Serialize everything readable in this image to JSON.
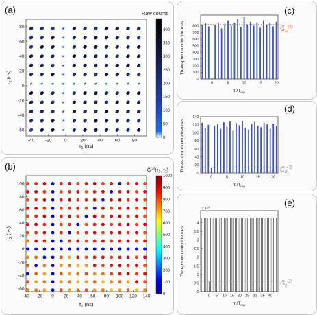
{
  "chart_data": [
    {
      "panel": "(a)",
      "type": "heatmap",
      "xlabel": "τ",
      "xlabel_sub": "1",
      "xlabel_unit": " (ns)",
      "ylabel": "τ",
      "ylabel_sub": "2",
      "ylabel_unit": " (ns)",
      "xticks": [
        -40,
        -20,
        0,
        20,
        40,
        60,
        80
      ],
      "yticks": [
        -60,
        -40,
        -20,
        0,
        20,
        40,
        60,
        80
      ],
      "xlim": [
        -46,
        94
      ],
      "ylim": [
        -68,
        90
      ],
      "colorbar_label": "Raw counts",
      "colorbar_ticks": [
        0,
        50,
        100,
        150,
        200,
        250,
        300,
        350,
        400
      ],
      "colorbar_range": [
        0,
        440
      ],
      "spot_spacing_ns": 12.5,
      "spot_grid_x": [
        -40,
        -27.5,
        -15,
        -2.5,
        10,
        22.5,
        35,
        47.5,
        60,
        72.5,
        85
      ],
      "spot_grid_y": [
        -60,
        -47.5,
        -35,
        -22.5,
        -10,
        2.5,
        15,
        27.5,
        40,
        52.5,
        65,
        77.5
      ]
    },
    {
      "panel": "(b)",
      "type": "heatmap",
      "xlabel": "τ",
      "xlabel_sub": "1",
      "xlabel_unit": " (ns)",
      "ylabel": "τ",
      "ylabel_sub": "2",
      "ylabel_unit": " (ns)",
      "xticks": [
        -40,
        -20,
        0,
        20,
        40,
        60,
        80,
        100,
        120,
        140
      ],
      "yticks": [
        -60,
        -40,
        -20,
        0,
        20,
        40,
        60,
        80,
        100
      ],
      "xlim": [
        -40,
        140
      ],
      "ylim": [
        -65,
        112
      ],
      "colorbar_label_main": "G̃",
      "colorbar_label_sup": "(3)",
      "colorbar_label_args": "(τ",
      "colorbar_label_args_sub": "1",
      "colorbar_label_args_mid": ", τ",
      "colorbar_label_args_sub2": "2",
      "colorbar_label_args_end": ")",
      "colorbar_ticks": [
        0,
        100,
        200,
        300,
        400,
        500,
        600,
        700,
        800,
        900,
        1000
      ],
      "colorbar_range": [
        0,
        1000
      ],
      "spot_spacing_ns": 12.5,
      "typical_value": 850,
      "axis_value": 120
    },
    {
      "panel": "(c)",
      "type": "bar",
      "xlabel": "τ /T",
      "xlabel_sub": "rep",
      "ylabel": "Three-photon coincidences",
      "xticks": [
        0,
        5,
        10,
        15,
        20
      ],
      "yticks": [
        0,
        100,
        200,
        300,
        400,
        500,
        600,
        700,
        800
      ],
      "xlim": [
        -3.5,
        20.5
      ],
      "ylim": [
        0,
        960
      ],
      "x": [
        -3,
        -2,
        -1,
        0,
        1,
        2,
        3,
        4,
        5,
        6,
        7,
        8,
        9,
        10,
        11,
        12,
        13,
        14,
        15,
        16,
        17,
        18,
        19,
        20
      ],
      "values": [
        810,
        840,
        790,
        20,
        805,
        850,
        760,
        830,
        880,
        800,
        840,
        900,
        780,
        930,
        820,
        860,
        800,
        850,
        770,
        880,
        810,
        840,
        790,
        860
      ],
      "reference_line": 820,
      "reference_main": "G̃",
      "reference_sub": "∞",
      "reference_sup": "(3)",
      "reference_color": "#e8602c"
    },
    {
      "panel": "(d)",
      "type": "bar",
      "xlabel": "τ /T",
      "xlabel_sub": "rep",
      "ylabel": "Three-photon coincidences",
      "xticks": [
        0,
        5,
        10,
        15,
        20
      ],
      "yticks": [
        0,
        20,
        40,
        60,
        80,
        100,
        120,
        140
      ],
      "xlim": [
        -3.5,
        21.5
      ],
      "ylim": [
        0,
        140
      ],
      "x": [
        -3,
        -2,
        -1,
        0,
        1,
        2,
        3,
        4,
        5,
        6,
        7,
        8,
        9,
        10,
        11,
        12,
        13,
        14,
        15,
        16,
        17,
        18,
        19,
        20,
        21
      ],
      "values": [
        125,
        112,
        120,
        12,
        118,
        122,
        110,
        126,
        115,
        128,
        105,
        124,
        119,
        130,
        112,
        108,
        122,
        127,
        118,
        114,
        125,
        121,
        110,
        123,
        116
      ],
      "reference_line": 14,
      "reference_main": "G̃",
      "reference_sub": "0",
      "reference_sup": "(3)",
      "reference_color": "#7a8a9a"
    },
    {
      "panel": "(e)",
      "type": "bar",
      "xlabel": "τ /T",
      "xlabel_sub": "rep",
      "ylabel": "Two-photon coincidences",
      "y_multiplier": "x 10",
      "y_multiplier_exp": "5",
      "xticks": [
        0,
        5,
        10,
        15,
        20,
        25,
        30,
        35,
        40
      ],
      "yticks": [
        0,
        0.5,
        1,
        1.5,
        2,
        2.5,
        3,
        3.5,
        4
      ],
      "xlim": [
        -5.5,
        45
      ],
      "ylim": [
        0,
        4.7
      ],
      "x_range": [
        -5,
        44
      ],
      "typical_value": 4.3,
      "zero_delay_value": 0.58,
      "reference_line": 0.6,
      "reference_main": "G̃",
      "reference_sub": "0",
      "reference_sup": "(2)",
      "reference_color": "#999999"
    }
  ],
  "panels": {
    "a_label": "(a)",
    "b_label": "(b)",
    "c_label": "(c)",
    "d_label": "(d)",
    "e_label": "(e)"
  },
  "colors": {
    "blue_bars": "#3a52c8",
    "dark_bars": "#333333",
    "orange_ref": "#e8602c"
  }
}
